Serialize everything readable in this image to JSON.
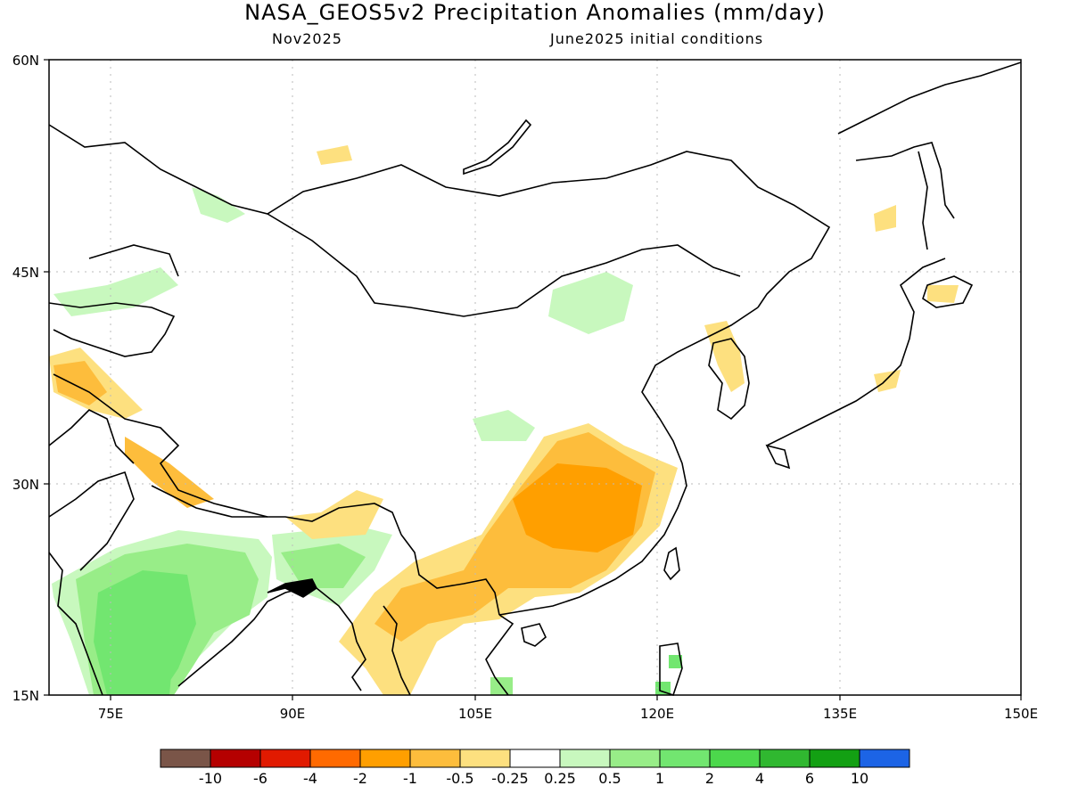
{
  "title": "NASA_GEOS5v2 Precipitation Anomalies (mm/day)",
  "subtitle_left": "Nov2025",
  "subtitle_right": "June2025 initial conditions",
  "axes": {
    "lat_labels": [
      "60N",
      "45N",
      "30N",
      "15N"
    ],
    "lon_labels": [
      "75E",
      "90E",
      "105E",
      "120E",
      "135E",
      "150E"
    ],
    "lat_range": [
      15,
      60
    ],
    "lon_range": [
      70,
      150
    ]
  },
  "colorbar": {
    "labels": [
      "-10",
      "-6",
      "-4",
      "-2",
      "-1",
      "-0.5",
      "-0.25",
      "0.25",
      "0.5",
      "1",
      "2",
      "4",
      "6",
      "10"
    ],
    "colors": [
      "#7a5548",
      "#b50000",
      "#e11a00",
      "#ff6a00",
      "#ff9f00",
      "#fdbd3c",
      "#fde07f",
      "#ffffff",
      "#c8f8be",
      "#98ed88",
      "#72e670",
      "#4cd84c",
      "#30b830",
      "#13a013",
      "#1c64e6"
    ]
  }
}
